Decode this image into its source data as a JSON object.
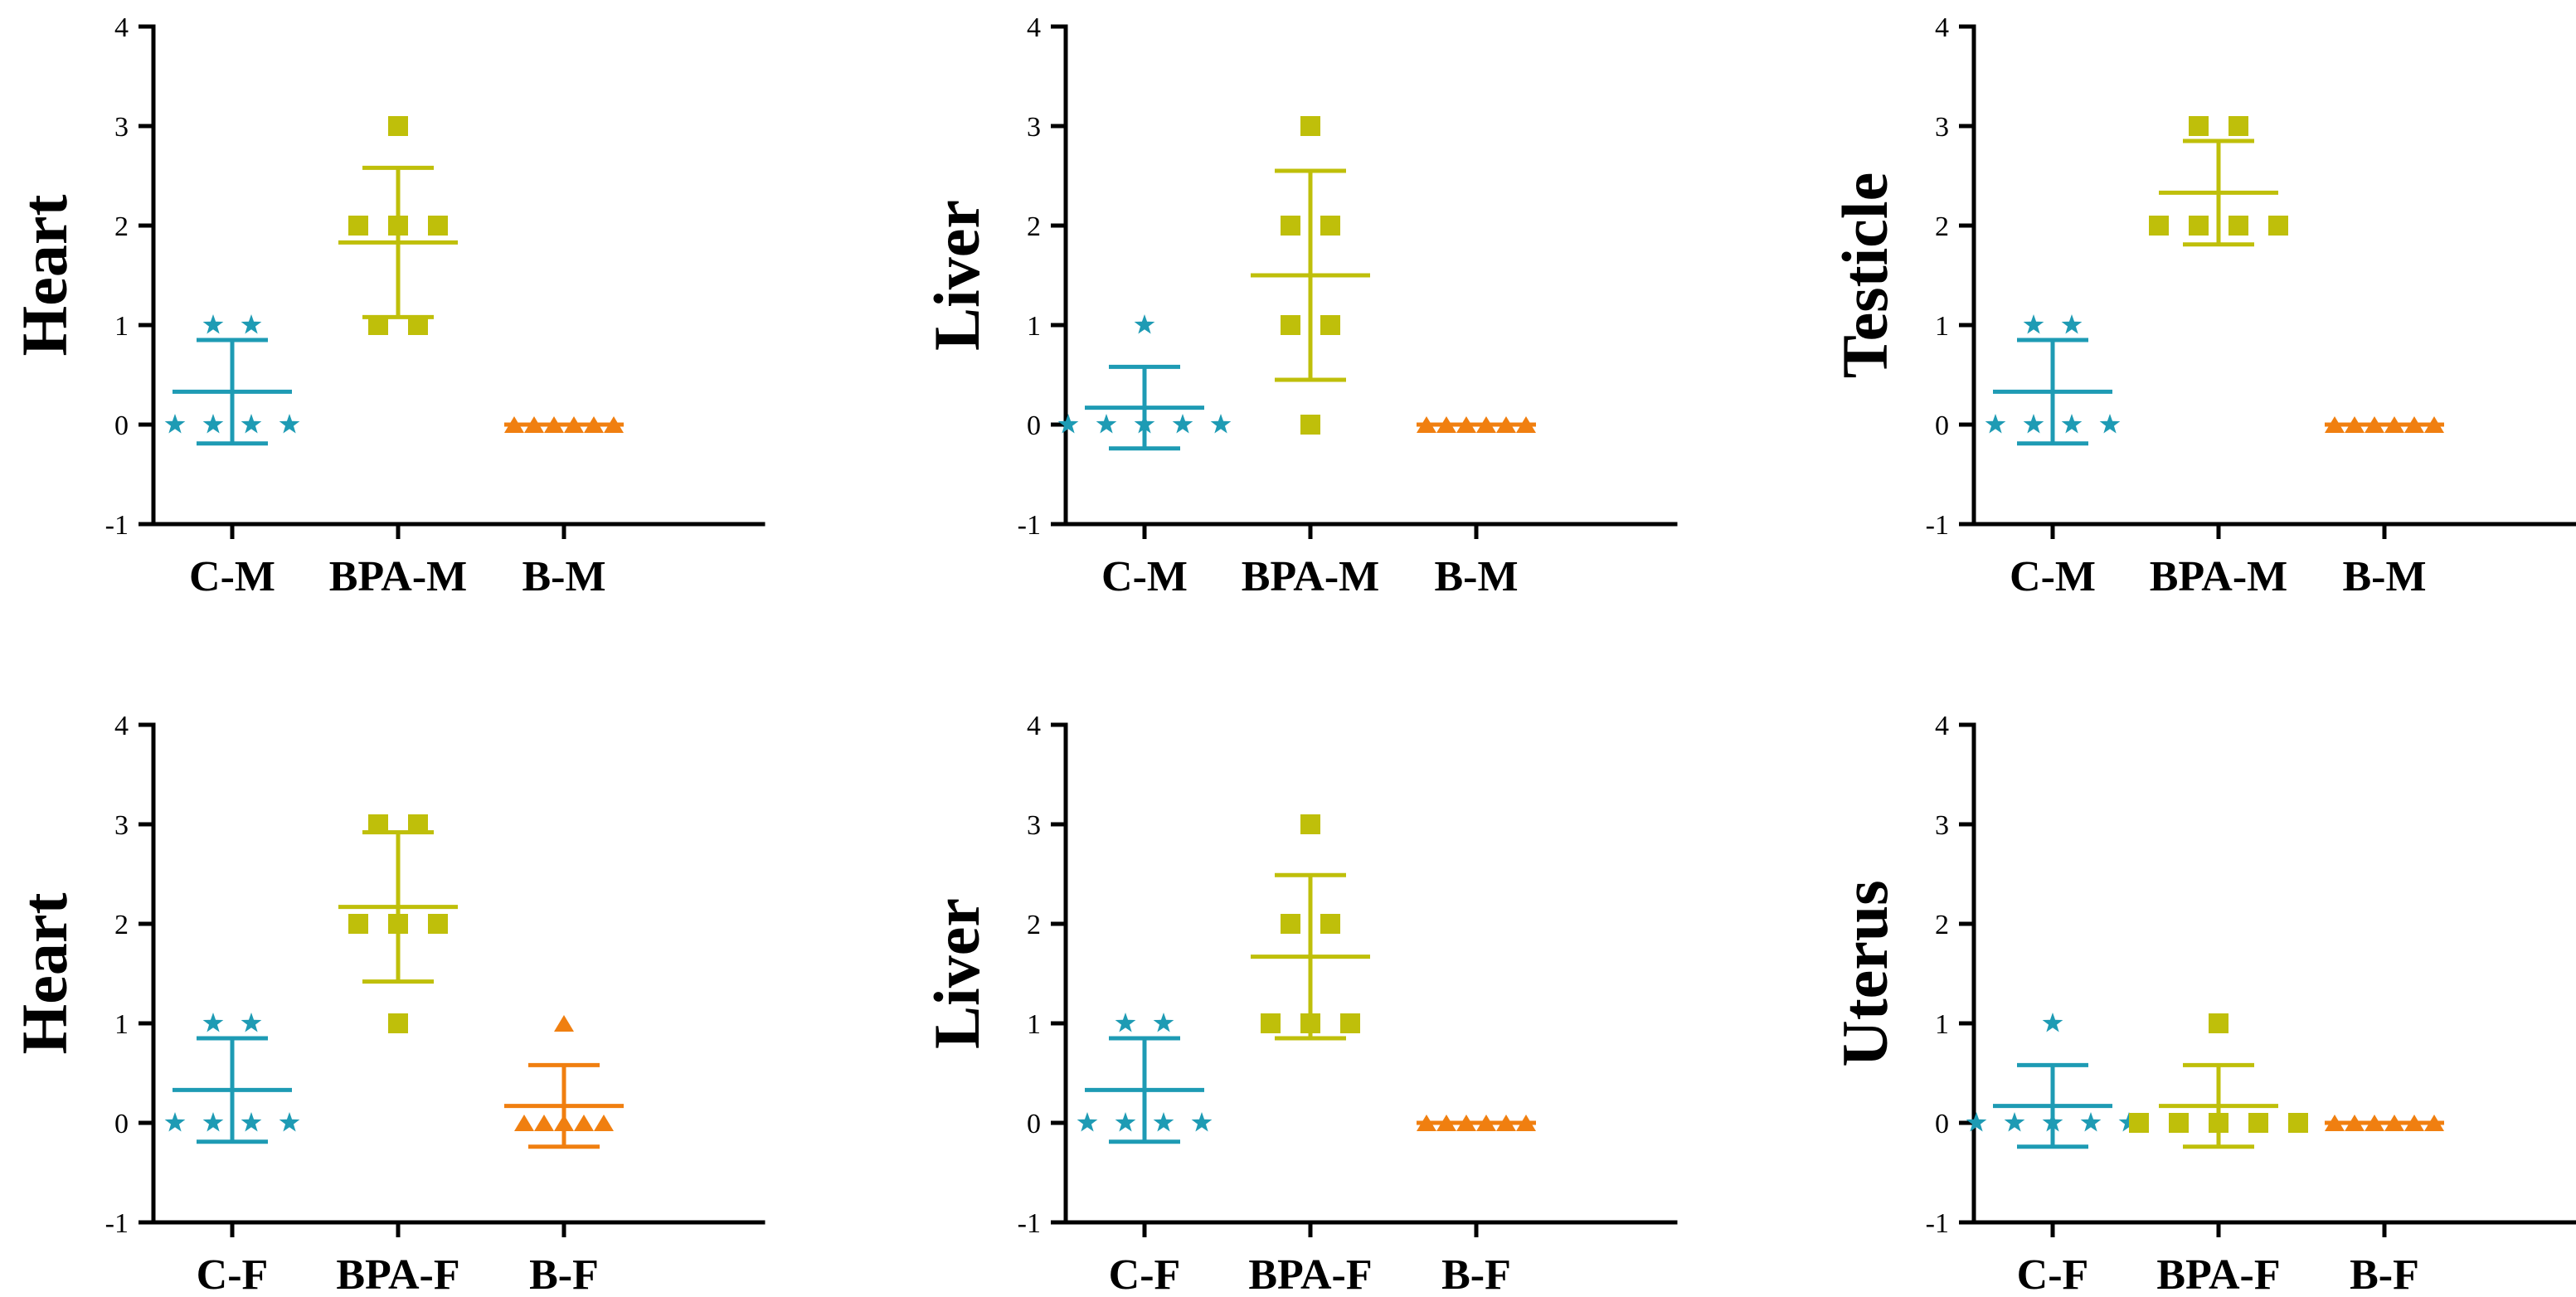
{
  "figure": {
    "layout": "grid of 2 rows by 3 columns",
    "colors": {
      "C": "#1e9bb4",
      "BPA": "#bfbf0a",
      "B": "#f07f10",
      "axis": "#000000"
    },
    "markers": {
      "C": "star",
      "BPA": "square",
      "B": "triangle"
    }
  },
  "chart_data": [
    {
      "type": "scatter",
      "ylabel": "Heart",
      "ylim": [
        -1,
        4
      ],
      "yticks": [
        "-1",
        "0",
        "1",
        "2",
        "3",
        "4"
      ],
      "categories": [
        "C-M",
        "BPA-M",
        "B-M"
      ],
      "series": [
        {
          "name": "C-M",
          "group": "C",
          "values": [
            1,
            1,
            0,
            0,
            0,
            0
          ],
          "mean": 0.33,
          "sd": 0.52
        },
        {
          "name": "BPA-M",
          "group": "BPA",
          "values": [
            3,
            2,
            2,
            2,
            1,
            1
          ],
          "mean": 1.83,
          "sd": 0.75
        },
        {
          "name": "B-M",
          "group": "B",
          "values": [
            0,
            0,
            0,
            0,
            0,
            0
          ],
          "mean": 0,
          "sd": 0
        }
      ]
    },
    {
      "type": "scatter",
      "ylabel": "Liver",
      "ylim": [
        -1,
        4
      ],
      "yticks": [
        "-1",
        "0",
        "1",
        "2",
        "3",
        "4"
      ],
      "categories": [
        "C-M",
        "BPA-M",
        "B-M"
      ],
      "series": [
        {
          "name": "C-M",
          "group": "C",
          "values": [
            1,
            0,
            0,
            0,
            0,
            0
          ],
          "mean": 0.17,
          "sd": 0.41
        },
        {
          "name": "BPA-M",
          "group": "BPA",
          "values": [
            3,
            2,
            2,
            1,
            1,
            0
          ],
          "mean": 1.5,
          "sd": 1.05
        },
        {
          "name": "B-M",
          "group": "B",
          "values": [
            0,
            0,
            0,
            0,
            0,
            0
          ],
          "mean": 0,
          "sd": 0
        }
      ]
    },
    {
      "type": "scatter",
      "ylabel": "Testicle",
      "ylim": [
        -1,
        4
      ],
      "yticks": [
        "-1",
        "0",
        "1",
        "2",
        "3",
        "4"
      ],
      "categories": [
        "C-M",
        "BPA-M",
        "B-M"
      ],
      "series": [
        {
          "name": "C-M",
          "group": "C",
          "values": [
            1,
            1,
            0,
            0,
            0,
            0
          ],
          "mean": 0.33,
          "sd": 0.52
        },
        {
          "name": "BPA-M",
          "group": "BPA",
          "values": [
            3,
            3,
            2,
            2,
            2,
            2
          ],
          "mean": 2.33,
          "sd": 0.52
        },
        {
          "name": "B-M",
          "group": "B",
          "values": [
            0,
            0,
            0,
            0,
            0,
            0
          ],
          "mean": 0,
          "sd": 0
        }
      ]
    },
    {
      "type": "scatter",
      "ylabel": "Heart",
      "ylim": [
        -1,
        4
      ],
      "yticks": [
        "-1",
        "0",
        "1",
        "2",
        "3",
        "4"
      ],
      "categories": [
        "C-F",
        "BPA-F",
        "B-F"
      ],
      "series": [
        {
          "name": "C-F",
          "group": "C",
          "values": [
            1,
            1,
            0,
            0,
            0,
            0
          ],
          "mean": 0.33,
          "sd": 0.52
        },
        {
          "name": "BPA-F",
          "group": "BPA",
          "values": [
            3,
            3,
            2,
            2,
            2,
            1
          ],
          "mean": 2.17,
          "sd": 0.75
        },
        {
          "name": "B-F",
          "group": "B",
          "values": [
            1,
            0,
            0,
            0,
            0,
            0
          ],
          "mean": 0.17,
          "sd": 0.41
        }
      ]
    },
    {
      "type": "scatter",
      "ylabel": "Liver",
      "ylim": [
        -1,
        4
      ],
      "yticks": [
        "-1",
        "0",
        "1",
        "2",
        "3",
        "4"
      ],
      "categories": [
        "C-F",
        "BPA-F",
        "B-F"
      ],
      "series": [
        {
          "name": "C-F",
          "group": "C",
          "values": [
            1,
            1,
            0,
            0,
            0,
            0
          ],
          "mean": 0.33,
          "sd": 0.52
        },
        {
          "name": "BPA-F",
          "group": "BPA",
          "values": [
            3,
            2,
            2,
            1,
            1,
            1
          ],
          "mean": 1.67,
          "sd": 0.82
        },
        {
          "name": "B-F",
          "group": "B",
          "values": [
            0,
            0,
            0,
            0,
            0,
            0
          ],
          "mean": 0,
          "sd": 0
        }
      ]
    },
    {
      "type": "scatter",
      "ylabel": "Uterus",
      "ylim": [
        -1,
        4
      ],
      "yticks": [
        "-1",
        "0",
        "1",
        "2",
        "3",
        "4"
      ],
      "categories": [
        "C-F",
        "BPA-F",
        "B-F"
      ],
      "series": [
        {
          "name": "C-F",
          "group": "C",
          "values": [
            1,
            0,
            0,
            0,
            0,
            0
          ],
          "mean": 0.17,
          "sd": 0.41
        },
        {
          "name": "BPA-F",
          "group": "BPA",
          "values": [
            1,
            0,
            0,
            0,
            0,
            0
          ],
          "mean": 0.17,
          "sd": 0.41
        },
        {
          "name": "B-F",
          "group": "B",
          "values": [
            0,
            0,
            0,
            0,
            0,
            0
          ],
          "mean": 0,
          "sd": 0
        }
      ]
    }
  ]
}
